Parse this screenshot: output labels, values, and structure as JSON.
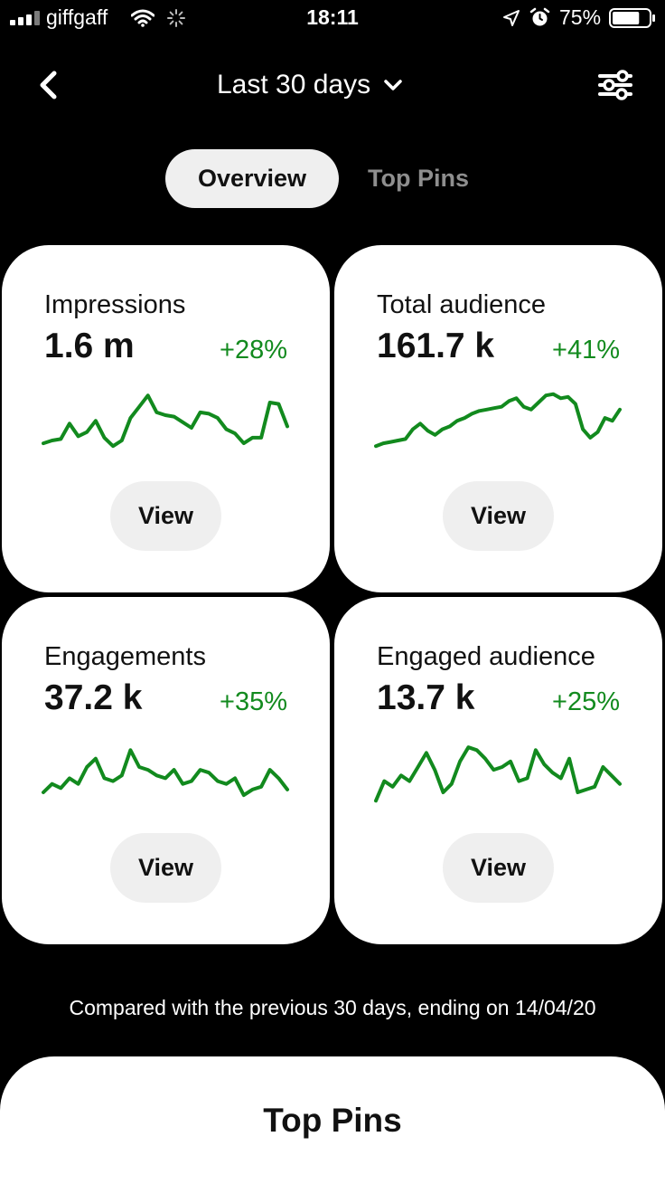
{
  "status_bar": {
    "carrier": "giffgaff",
    "time": "18:11",
    "battery": "75%",
    "battery_level": 0.75
  },
  "header": {
    "date_range": "Last 30 days"
  },
  "tabs": [
    {
      "label": "Overview",
      "active": true
    },
    {
      "label": "Top Pins",
      "active": false
    }
  ],
  "cards": [
    {
      "title": "Impressions",
      "value": "1.6 m",
      "change": "+28%",
      "button": "View",
      "trend": [
        38,
        36,
        35,
        24,
        33,
        30,
        22,
        34,
        40,
        36,
        20,
        12,
        4,
        16,
        18,
        19,
        23,
        27,
        16,
        17,
        20,
        28,
        31,
        38,
        34,
        34,
        9,
        10,
        26
      ]
    },
    {
      "title": "Total audience",
      "value": "161.7 k",
      "change": "+41%",
      "button": "View",
      "trend": [
        40,
        38,
        37,
        36,
        35,
        28,
        24,
        29,
        32,
        28,
        26,
        22,
        20,
        17,
        15,
        14,
        13,
        12,
        8,
        6,
        12,
        14,
        9,
        4,
        3,
        6,
        5,
        10,
        28,
        34,
        30,
        20,
        22,
        14
      ]
    },
    {
      "title": "Engagements",
      "value": "37.2 k",
      "change": "+35%",
      "button": "View",
      "trend": [
        36,
        30,
        33,
        26,
        30,
        18,
        12,
        26,
        28,
        24,
        6,
        18,
        20,
        24,
        26,
        20,
        30,
        28,
        20,
        22,
        28,
        30,
        26,
        38,
        34,
        32,
        20,
        26,
        34
      ]
    },
    {
      "title": "Engaged audience",
      "value": "13.7 k",
      "change": "+25%",
      "button": "View",
      "trend": [
        42,
        28,
        32,
        24,
        28,
        18,
        8,
        20,
        36,
        30,
        14,
        4,
        6,
        12,
        20,
        18,
        14,
        28,
        26,
        6,
        16,
        22,
        26,
        12,
        36,
        34,
        32,
        18,
        24,
        30
      ]
    }
  ],
  "comparison_note": "Compared with the previous 30 days, ending on 14/04/20",
  "top_pins_section": {
    "title": "Top Pins"
  },
  "colors": {
    "trend_green": "#128a1e",
    "background": "#000000",
    "card": "#ffffff",
    "pill": "#efefef"
  }
}
